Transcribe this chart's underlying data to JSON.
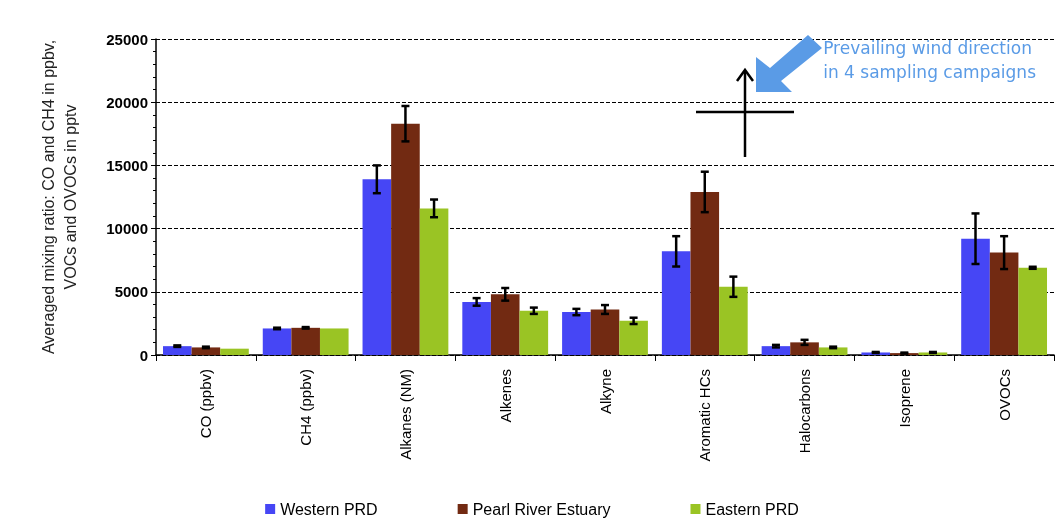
{
  "chart_data": {
    "type": "bar",
    "ylabel": "Averaged mixing ratio: CO and CH4 in ppbv,\nVOCs and OVOCs in pptv",
    "categories": [
      "CO (ppbv)",
      "CH4 (ppbv)",
      "Alkanes (NM)",
      "Alkenes",
      "Alkyne",
      "Aromatic HCs",
      "Halocarbons",
      "Isoprene",
      "OVOCs"
    ],
    "series": [
      {
        "name": "Western PRD",
        "color": "#4646f5",
        "values": [
          700,
          2100,
          13900,
          4200,
          3400,
          8200,
          700,
          200,
          9200
        ],
        "errors": [
          60,
          60,
          1100,
          300,
          250,
          1200,
          100,
          40,
          2000
        ]
      },
      {
        "name": "Pearl River Estuary",
        "color": "#722a12",
        "values": [
          600,
          2150,
          18300,
          4800,
          3600,
          12900,
          1000,
          150,
          8100
        ],
        "errors": [
          60,
          60,
          1400,
          500,
          350,
          1600,
          200,
          40,
          1300
        ]
      },
      {
        "name": "Eastern PRD",
        "color": "#9ac424",
        "values": [
          500,
          2100,
          11600,
          3500,
          2700,
          5400,
          600,
          200,
          6900
        ],
        "errors": [
          null,
          null,
          700,
          250,
          250,
          800,
          60,
          40,
          80
        ]
      }
    ],
    "ylim": [
      0,
      25000
    ],
    "yticks": [
      0,
      5000,
      10000,
      15000,
      20000,
      25000
    ],
    "grid": "y",
    "legend": "bottom",
    "annotations": [
      "Prevailing wind direction\nin 4 sampling campaigns"
    ]
  }
}
